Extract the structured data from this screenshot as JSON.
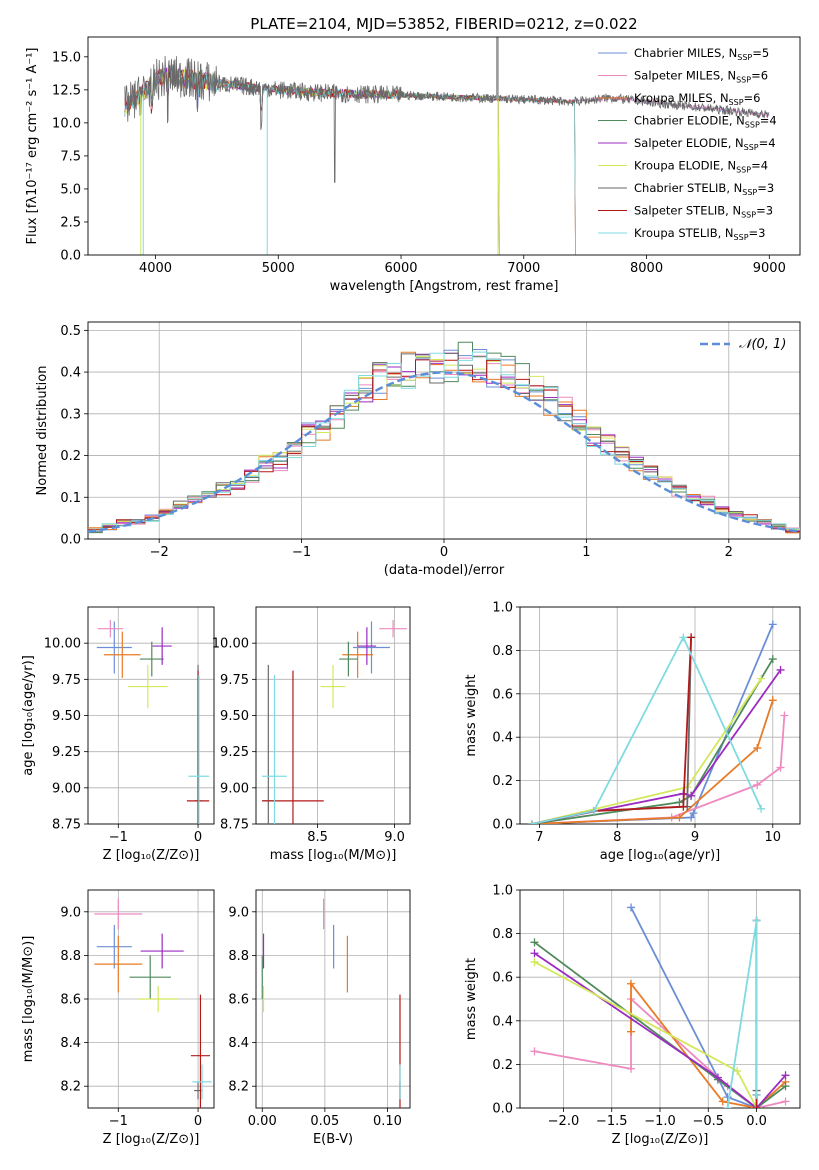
{
  "colors": [
    "#6b8fd6",
    "#ee8ac0",
    "#e87b27",
    "#4f8a5c",
    "#9c2bc1",
    "#d4e85c",
    "#6a6a6a",
    "#b41919",
    "#7fdbe0"
  ],
  "chart_data": [
    {
      "id": "spectrum",
      "type": "line",
      "title": "PLATE=2104, MJD=53852, FIBERID=0212, z=0.022",
      "xlabel": "wavelength [Angstrom, rest frame]",
      "ylabel": "Flux [fλ10⁻¹⁷ erg cm⁻² s⁻¹ A⁻¹]",
      "xlim": [
        3450,
        9250
      ],
      "ylim": [
        0,
        16.5
      ],
      "xticks": [
        4000,
        5000,
        6000,
        7000,
        8000,
        9000
      ],
      "yticks": [
        0.0,
        2.5,
        5.0,
        7.5,
        10.0,
        12.5,
        15.0
      ],
      "ytick_labels": [
        "0.0",
        "2.5",
        "5.0",
        "7.5",
        "10.0",
        "12.5",
        "15.0"
      ],
      "grid": false,
      "legend_position": "top-right",
      "continuum": {
        "x": [
          3750,
          3900,
          4000,
          4100,
          4300,
          4500,
          4700,
          5000,
          5300,
          5600,
          6000,
          6300,
          6600,
          6900,
          7100,
          7400,
          7700,
          8000,
          8300,
          8600,
          9000
        ],
        "y": [
          11.2,
          12.3,
          13.2,
          13.6,
          13.3,
          13.0,
          12.8,
          12.5,
          12.3,
          12.2,
          12.1,
          12.0,
          11.9,
          11.8,
          11.75,
          11.6,
          11.9,
          11.6,
          11.3,
          11.0,
          10.6
        ]
      },
      "series": [
        {
          "name": "Chabrier MILES, N",
          "sub": "SSP",
          "suffix": "=5",
          "end": 9000
        },
        {
          "name": "Salpeter MILES, N",
          "sub": "SSP",
          "suffix": "=6",
          "end": 9000
        },
        {
          "name": "Kroupa MILES, N",
          "sub": "SSP",
          "suffix": "=6",
          "end": 7420
        },
        {
          "name": "Chabrier ELODIE, N",
          "sub": "SSP",
          "suffix": "=4",
          "end": 6800
        },
        {
          "name": "Salpeter ELODIE, N",
          "sub": "SSP",
          "suffix": "=4",
          "end": 6800
        },
        {
          "name": "Kroupa ELODIE, N",
          "sub": "SSP",
          "suffix": "=4",
          "end": 6800
        },
        {
          "name": "Chabrier STELIB, N",
          "sub": "SSP",
          "suffix": "=3",
          "end": 9000
        },
        {
          "name": "Salpeter STELIB, N",
          "sub": "SSP",
          "suffix": "=3",
          "end": 7420
        },
        {
          "name": "Kroupa STELIB, N",
          "sub": "SSP",
          "suffix": "=3",
          "end": 7420
        }
      ]
    },
    {
      "id": "residuals",
      "type": "line",
      "xlabel": "(data-model)/error",
      "ylabel": "Normed distribution",
      "xlim": [
        -2.5,
        2.5
      ],
      "ylim": [
        0,
        0.52
      ],
      "xticks": [
        -2,
        -1,
        0,
        1,
        2
      ],
      "xtick_labels": [
        "−2",
        "−1",
        "0",
        "1",
        "2"
      ],
      "yticks": [
        0.0,
        0.1,
        0.2,
        0.3,
        0.4,
        0.5
      ],
      "ytick_labels": [
        "0.0",
        "0.1",
        "0.2",
        "0.3",
        "0.4",
        "0.5"
      ],
      "grid": true,
      "legend_position": "top-right",
      "bin_width": 0.1,
      "reference": {
        "name": "𝒩(0, 1)",
        "mean": 0,
        "sigma": 1
      },
      "histogram": {
        "bin_edges_start": -2.5,
        "values": [
          0.02,
          0.03,
          0.04,
          0.04,
          0.05,
          0.06,
          0.08,
          0.09,
          0.11,
          0.12,
          0.13,
          0.15,
          0.18,
          0.19,
          0.22,
          0.25,
          0.27,
          0.3,
          0.33,
          0.36,
          0.38,
          0.39,
          0.41,
          0.4,
          0.41,
          0.42,
          0.43,
          0.42,
          0.41,
          0.4,
          0.38,
          0.36,
          0.33,
          0.31,
          0.28,
          0.25,
          0.23,
          0.2,
          0.18,
          0.16,
          0.14,
          0.12,
          0.1,
          0.09,
          0.07,
          0.06,
          0.05,
          0.04,
          0.03,
          0.02
        ]
      }
    },
    {
      "id": "age_vs_Z",
      "type": "scatter",
      "xlabel": "Z [log₁₀(Z/Z⊙)]",
      "ylabel": "age  [log₁₀(age/yr)]",
      "xlim": [
        -1.38,
        0.2
      ],
      "ylim": [
        8.75,
        10.25
      ],
      "xticks": [
        -1,
        0
      ],
      "xtick_labels": [
        "−1",
        "0"
      ],
      "yticks": [
        8.75,
        9.0,
        9.25,
        9.5,
        9.75,
        10.0
      ],
      "ytick_labels": [
        "8.75",
        "9.00",
        "9.25",
        "9.50",
        "9.75",
        "10.00"
      ],
      "grid": true,
      "points": [
        {
          "x": -1.05,
          "y": 9.97,
          "xerr": 0.22,
          "yerr": 0.18
        },
        {
          "x": -1.1,
          "y": 10.1,
          "xerr": 0.16,
          "yerr": 0.06
        },
        {
          "x": -0.95,
          "y": 9.92,
          "xerr": 0.23,
          "yerr": 0.16
        },
        {
          "x": -0.58,
          "y": 9.89,
          "xerr": 0.15,
          "yerr": 0.12
        },
        {
          "x": -0.45,
          "y": 9.98,
          "xerr": 0.12,
          "yerr": 0.13
        },
        {
          "x": -0.63,
          "y": 9.7,
          "xerr": 0.25,
          "yerr": 0.15
        },
        {
          "x": 0.0,
          "y": 8.91,
          "xerr": 0.04,
          "yerr": 0.94
        },
        {
          "x": 0.0,
          "y": 8.91,
          "xerr": 0.14,
          "yerr": 0.9
        },
        {
          "x": 0.01,
          "y": 9.08,
          "xerr": 0.13,
          "yerr": 0.7
        }
      ]
    },
    {
      "id": "age_vs_mass",
      "type": "scatter",
      "xlabel": "mass [log₁₀(M/M⊙)]",
      "ylabel": "",
      "xlim": [
        8.1,
        9.1
      ],
      "ylim": [
        8.75,
        10.25
      ],
      "xticks": [
        8.5,
        9.0
      ],
      "xtick_labels": [
        "8.5",
        "9.0"
      ],
      "yticks": [
        8.75,
        9.0,
        9.25,
        9.5,
        9.75,
        10.0
      ],
      "ytick_labels": [
        "8.75",
        "9.00",
        "9.25",
        "9.50",
        "9.75",
        "10.00"
      ],
      "grid": true,
      "points": [
        {
          "x": 8.85,
          "y": 9.97,
          "xerr": 0.12,
          "yerr": 0.18
        },
        {
          "x": 8.99,
          "y": 10.1,
          "xerr": 0.09,
          "yerr": 0.06
        },
        {
          "x": 8.76,
          "y": 9.92,
          "xerr": 0.1,
          "yerr": 0.16
        },
        {
          "x": 8.7,
          "y": 9.89,
          "xerr": 0.06,
          "yerr": 0.12
        },
        {
          "x": 8.82,
          "y": 9.98,
          "xerr": 0.06,
          "yerr": 0.13
        },
        {
          "x": 8.6,
          "y": 9.7,
          "xerr": 0.08,
          "yerr": 0.15
        },
        {
          "x": 8.18,
          "y": 8.91,
          "xerr": 0.04,
          "yerr": 0.94
        },
        {
          "x": 8.34,
          "y": 8.91,
          "xerr": 0.2,
          "yerr": 0.9
        },
        {
          "x": 8.22,
          "y": 9.08,
          "xerr": 0.08,
          "yerr": 0.7
        }
      ]
    },
    {
      "id": "weight_vs_age",
      "type": "line",
      "xlabel": "age  [log₁₀(age/yr)]",
      "ylabel": "mass weight",
      "xlim": [
        6.75,
        10.35
      ],
      "ylim": [
        0,
        1.0
      ],
      "xticks": [
        7,
        8,
        9,
        10
      ],
      "xtick_labels": [
        "7",
        "8",
        "9",
        "10"
      ],
      "yticks": [
        0.0,
        0.2,
        0.4,
        0.6,
        0.8,
        1.0
      ],
      "ytick_labels": [
        "0.0",
        "0.2",
        "0.4",
        "0.6",
        "0.8",
        "1.0"
      ],
      "grid": true,
      "series": [
        {
          "x": [
            6.9,
            8.95,
            8.98,
            10.0
          ],
          "y": [
            0.0,
            0.03,
            0.05,
            0.92
          ]
        },
        {
          "x": [
            6.9,
            8.7,
            9.8,
            10.1,
            10.15
          ],
          "y": [
            0.0,
            0.03,
            0.18,
            0.26,
            0.5
          ]
        },
        {
          "x": [
            6.9,
            8.8,
            9.8,
            10.0
          ],
          "y": [
            0.0,
            0.03,
            0.35,
            0.57
          ]
        },
        {
          "x": [
            6.9,
            8.8,
            8.95,
            10.0
          ],
          "y": [
            0.0,
            0.1,
            0.13,
            0.76
          ]
        },
        {
          "x": [
            6.9,
            8.85,
            8.95,
            10.1
          ],
          "y": [
            0.0,
            0.14,
            0.13,
            0.71
          ]
        },
        {
          "x": [
            6.9,
            8.9,
            9.85
          ],
          "y": [
            0.0,
            0.17,
            0.67
          ]
        },
        {
          "x": [
            6.9,
            7.7,
            8.9,
            8.95
          ],
          "y": [
            0.0,
            0.06,
            0.08,
            0.86
          ]
        },
        {
          "x": [
            6.9,
            7.7,
            8.85,
            8.95
          ],
          "y": [
            0.0,
            0.06,
            0.08,
            0.86
          ]
        },
        {
          "x": [
            6.9,
            7.7,
            8.85,
            9.85
          ],
          "y": [
            0.0,
            0.06,
            0.86,
            0.07
          ]
        }
      ]
    },
    {
      "id": "mass_vs_Z",
      "type": "scatter",
      "xlabel": "Z [log₁₀(Z/Z⊙)]",
      "ylabel": "mass [log₁₀(M/M⊙)]",
      "xlim": [
        -1.38,
        0.2
      ],
      "ylim": [
        8.1,
        9.1
      ],
      "xticks": [
        -1,
        0
      ],
      "xtick_labels": [
        "−1",
        "0"
      ],
      "yticks": [
        8.2,
        8.4,
        8.6,
        8.8,
        9.0
      ],
      "ytick_labels": [
        "8.2",
        "8.4",
        "8.6",
        "8.8",
        "9.0"
      ],
      "grid": true,
      "points": [
        {
          "x": -1.05,
          "y": 8.84,
          "xerr": 0.22,
          "yerr": 0.1
        },
        {
          "x": -1.0,
          "y": 8.99,
          "xerr": 0.3,
          "yerr": 0.07
        },
        {
          "x": -1.0,
          "y": 8.76,
          "xerr": 0.3,
          "yerr": 0.13
        },
        {
          "x": -0.6,
          "y": 8.7,
          "xerr": 0.26,
          "yerr": 0.1
        },
        {
          "x": -0.45,
          "y": 8.82,
          "xerr": 0.27,
          "yerr": 0.08
        },
        {
          "x": -0.5,
          "y": 8.6,
          "xerr": 0.25,
          "yerr": 0.06
        },
        {
          "x": 0.0,
          "y": 8.18,
          "xerr": 0.05,
          "yerr": 0.04
        },
        {
          "x": 0.03,
          "y": 8.34,
          "xerr": 0.12,
          "yerr": 0.28
        },
        {
          "x": 0.05,
          "y": 8.22,
          "xerr": 0.12,
          "yerr": 0.08
        }
      ]
    },
    {
      "id": "mass_vs_ebv",
      "type": "scatter",
      "xlabel": "E(B-V)",
      "ylabel": "",
      "xlim": [
        -0.005,
        0.118
      ],
      "ylim": [
        8.1,
        9.1
      ],
      "xticks": [
        0.0,
        0.05,
        0.1
      ],
      "xtick_labels": [
        "0.00",
        "0.05",
        "0.10"
      ],
      "yticks": [
        8.2,
        8.4,
        8.6,
        8.8,
        9.0
      ],
      "ytick_labels": [
        "8.2",
        "8.4",
        "8.6",
        "8.8",
        "9.0"
      ],
      "grid": true,
      "points": [
        {
          "x": 0.057,
          "y": 8.84,
          "xerr": 0.0,
          "yerr": 0.1
        },
        {
          "x": 0.049,
          "y": 8.99,
          "xerr": 0.0,
          "yerr": 0.07
        },
        {
          "x": 0.068,
          "y": 8.76,
          "xerr": 0.0,
          "yerr": 0.13
        },
        {
          "x": 0.0,
          "y": 8.7,
          "xerr": 0.0,
          "yerr": 0.1
        },
        {
          "x": 0.001,
          "y": 8.82,
          "xerr": 0.0,
          "yerr": 0.08
        },
        {
          "x": 0.001,
          "y": 8.6,
          "xerr": 0.0,
          "yerr": 0.06
        },
        {
          "x": 0.11,
          "y": 8.18,
          "xerr": 0.0,
          "yerr": 0.04
        },
        {
          "x": 0.11,
          "y": 8.34,
          "xerr": 0.0,
          "yerr": 0.28
        },
        {
          "x": 0.11,
          "y": 8.22,
          "xerr": 0.0,
          "yerr": 0.08
        }
      ]
    },
    {
      "id": "weight_vs_Z",
      "type": "line",
      "xlabel": "Z [log₁₀(Z/Z⊙)]",
      "ylabel": "mass weight",
      "xlim": [
        -2.45,
        0.45
      ],
      "ylim": [
        0,
        1.0
      ],
      "xticks": [
        -2.0,
        -1.5,
        -1.0,
        -0.5,
        0.0
      ],
      "xtick_labels": [
        "−2.0",
        "−1.5",
        "−1.0",
        "−0.5",
        "0.0"
      ],
      "yticks": [
        0.0,
        0.2,
        0.4,
        0.6,
        0.8,
        1.0
      ],
      "ytick_labels": [
        "0.0",
        "0.2",
        "0.4",
        "0.6",
        "0.8",
        "1.0"
      ],
      "grid": true,
      "series": [
        {
          "x": [
            -1.3,
            -0.3,
            0.0
          ],
          "y": [
            0.92,
            0.05,
            0.0
          ]
        },
        {
          "x": [
            -2.3,
            -1.3,
            -1.3,
            -0.3,
            0.0,
            0.3
          ],
          "y": [
            0.26,
            0.18,
            0.5,
            0.1,
            0.0,
            0.03
          ]
        },
        {
          "x": [
            -1.3,
            -1.3,
            -0.35,
            0.0,
            0.3
          ],
          "y": [
            0.35,
            0.57,
            0.03,
            0.0,
            0.12
          ]
        },
        {
          "x": [
            -2.3,
            -0.4,
            0.0,
            0.3
          ],
          "y": [
            0.76,
            0.13,
            0.0,
            0.1
          ]
        },
        {
          "x": [
            -2.3,
            -0.4,
            0.0,
            0.3
          ],
          "y": [
            0.71,
            0.14,
            0.0,
            0.15
          ]
        },
        {
          "x": [
            -2.3,
            -0.2,
            0.0
          ],
          "y": [
            0.67,
            0.17,
            0.0
          ]
        },
        {
          "x": [
            0.0,
            0.0,
            0.0
          ],
          "y": [
            0.0,
            0.08,
            0.86
          ]
        },
        {
          "x": [
            0.0,
            0.0,
            0.0
          ],
          "y": [
            0.0,
            0.06,
            0.86
          ]
        },
        {
          "x": [
            -0.3,
            0.0,
            0.0
          ],
          "y": [
            0.0,
            0.86,
            0.06
          ]
        }
      ]
    }
  ]
}
